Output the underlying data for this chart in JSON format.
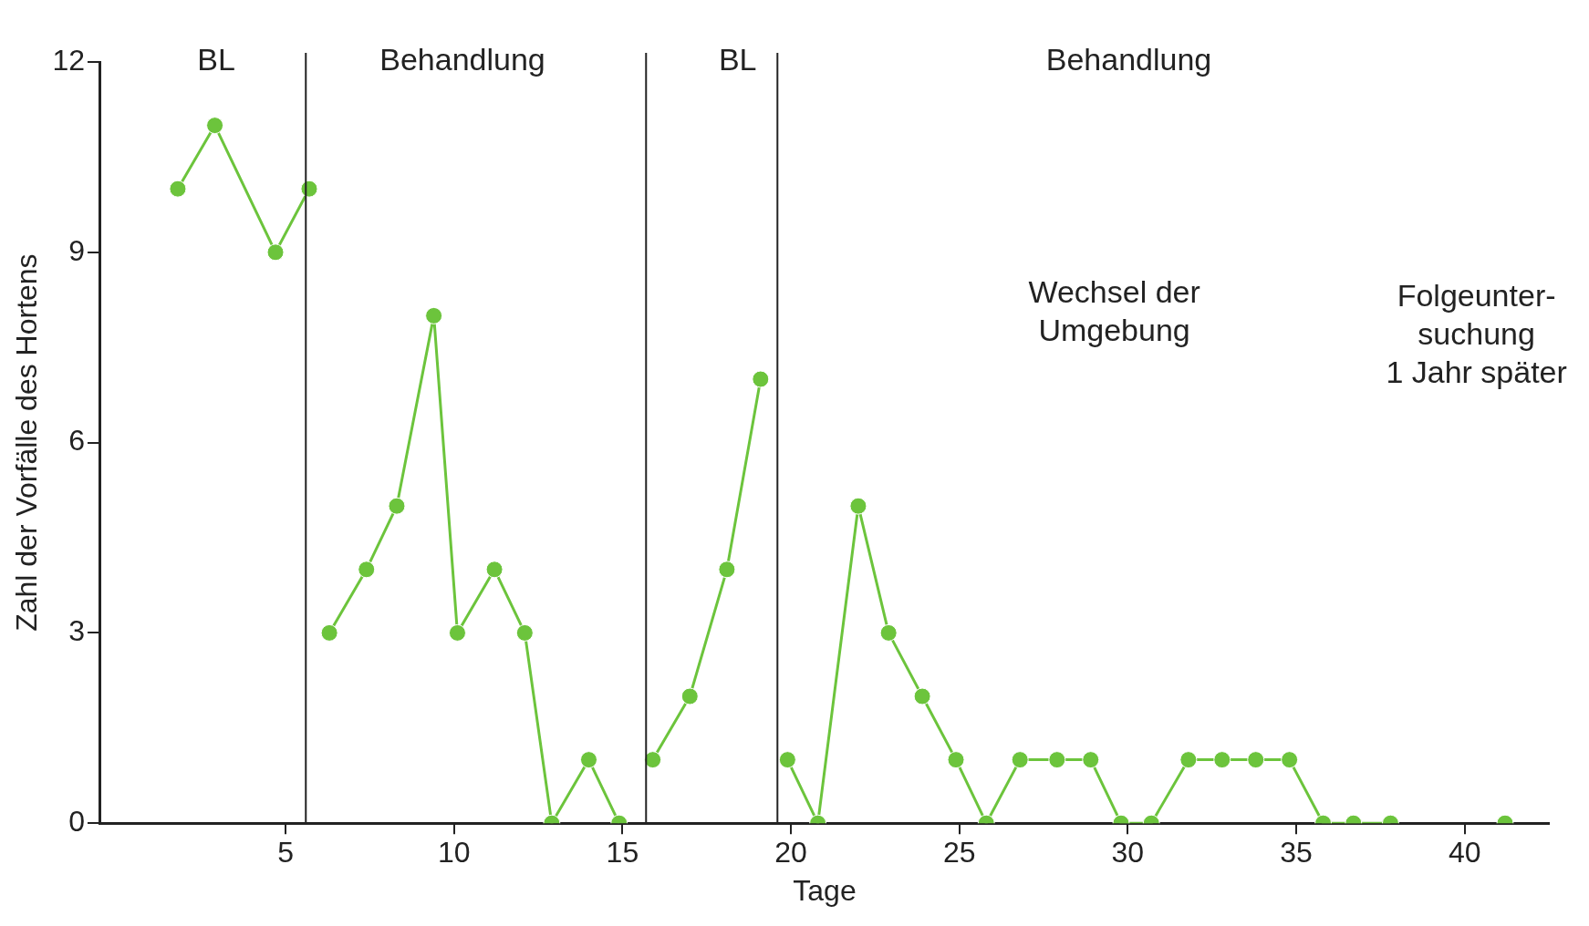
{
  "chart_data": {
    "type": "line",
    "xlabel": "Tage",
    "ylabel": "Zahl der Vorfälle des Hortens",
    "xlim": [
      -0.5,
      42.5
    ],
    "xticks": [
      5,
      10,
      15,
      20,
      25,
      30,
      35,
      40
    ],
    "ylim": [
      0,
      12
    ],
    "yticks": [
      0,
      3,
      6,
      9,
      12
    ],
    "grid": false,
    "legend": false,
    "marker": "circle",
    "series": [
      {
        "color": "#6cc43c",
        "x": [
          1.8,
          2.9,
          4.7,
          5.7
        ],
        "values": [
          10,
          11,
          9,
          10
        ]
      },
      {
        "color": "#6cc43c",
        "x": [
          6.3,
          7.4,
          8.3,
          9.4,
          10.1,
          11.2,
          12.1,
          12.9,
          14.0,
          14.9
        ],
        "values": [
          3,
          4,
          5,
          8,
          3,
          4,
          3,
          0,
          1,
          0
        ]
      },
      {
        "color": "#6cc43c",
        "x": [
          15.9,
          17.0,
          18.1,
          19.1
        ],
        "values": [
          1,
          2,
          4,
          7
        ]
      },
      {
        "color": "#6cc43c",
        "x": [
          19.9,
          20.8,
          22.0,
          22.9,
          23.9,
          24.9,
          25.8,
          26.8,
          27.9,
          28.9,
          29.8,
          30.7,
          31.8,
          32.8,
          33.8,
          34.8,
          35.8,
          36.7,
          37.8
        ],
        "values": [
          1,
          0,
          5,
          3,
          2,
          1,
          0,
          1,
          1,
          1,
          0,
          0,
          1,
          1,
          1,
          1,
          0,
          0,
          0
        ]
      },
      {
        "color": "#6cc43c",
        "x": [
          41.2
        ],
        "values": [
          0
        ]
      }
    ],
    "ref_lines": [
      {
        "axis": "x",
        "value": 5.6,
        "color": "#222222"
      },
      {
        "axis": "x",
        "value": 15.7,
        "color": "#222222"
      },
      {
        "axis": "x",
        "value": 19.6,
        "color": "#222222"
      }
    ],
    "annotations": [
      "BL",
      "Behandlung",
      "BL",
      "Behandlung",
      "Wechsel der\nUmgebung",
      "Folgeunter-\nsuchung\n1 Jahr später"
    ]
  }
}
